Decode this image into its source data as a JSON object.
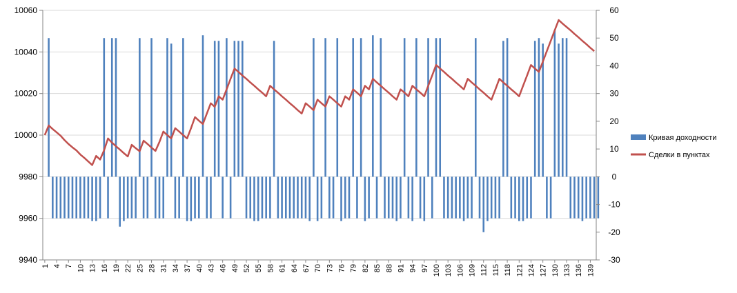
{
  "chart_data": {
    "type": "bar+line",
    "categories_count": 140,
    "x_tick_labels": [
      "1",
      "4",
      "7",
      "10",
      "13",
      "16",
      "19",
      "22",
      "25",
      "28",
      "31",
      "34",
      "37",
      "40",
      "43",
      "46",
      "49",
      "52",
      "55",
      "58",
      "61",
      "64",
      "67",
      "70",
      "73",
      "76",
      "79",
      "82",
      "85",
      "88",
      "91",
      "94",
      "97",
      "100",
      "103",
      "106",
      "109",
      "112",
      "115",
      "118",
      "121",
      "124",
      "127",
      "130",
      "133",
      "136",
      "139"
    ],
    "left_axis": {
      "min": 9940,
      "max": 10060,
      "ticks": [
        "9940",
        "9960",
        "9980",
        "10000",
        "10020",
        "10040",
        "10060"
      ]
    },
    "right_axis": {
      "min": -30,
      "max": 60,
      "ticks": [
        "-30",
        "-20",
        "-10",
        "0",
        "10",
        "20",
        "30",
        "40",
        "50",
        "60"
      ]
    },
    "grid": true,
    "legend_position": "right",
    "series": [
      {
        "name": "Кривая доходности",
        "kind": "bar",
        "axis": "right",
        "color": "#4f81bd",
        "values": [
          0,
          50,
          -15,
          -15,
          -15,
          -15,
          -15,
          -15,
          -15,
          -15,
          -15,
          -15,
          -16,
          -16,
          -15,
          50,
          -15,
          50,
          50,
          -18,
          -16,
          -15,
          -15,
          -15,
          50,
          -15,
          -15,
          50,
          -15,
          -15,
          -15,
          50,
          48,
          -15,
          -15,
          50,
          -16,
          -16,
          -15,
          -15,
          51,
          -15,
          -15,
          49,
          49,
          -15,
          50,
          -15,
          49,
          49,
          49,
          -15,
          -15,
          -16,
          -16,
          -15,
          -15,
          -15,
          49,
          -15,
          -15,
          -15,
          -15,
          -15,
          -15,
          -15,
          -15,
          -16,
          50,
          -16,
          -15,
          50,
          -15,
          -15,
          50,
          -16,
          -15,
          -15,
          50,
          -15,
          50,
          -16,
          -15,
          51,
          -15,
          50,
          -15,
          -15,
          -15,
          -16,
          -15,
          50,
          -15,
          -16,
          50,
          -15,
          -16,
          50,
          -15,
          50,
          50,
          -15,
          -15,
          -15,
          -15,
          -15,
          -16,
          -15,
          -15,
          50,
          -15,
          -20,
          -16,
          -15,
          -15,
          -15,
          49,
          50,
          -15,
          -15,
          -16,
          -16,
          -15,
          -15,
          49,
          50,
          48,
          -15,
          -15,
          53,
          48,
          50,
          50,
          -15,
          -15,
          -15,
          -16,
          -15,
          -15,
          -15,
          -15,
          0
        ],
        "bar_style": "thin"
      },
      {
        "name": "Сделки в пунктах",
        "kind": "line",
        "axis": "right",
        "color": "#c0504d",
        "values": [
          15,
          18.5,
          17.2,
          16,
          14.8,
          13.2,
          11.8,
          10.6,
          9.5,
          8,
          6.8,
          5.5,
          4.2,
          7.5,
          6.2,
          9.5,
          13.8,
          12.3,
          11,
          9.8,
          8.5,
          7.3,
          11.5,
          10.3,
          9.2,
          13,
          11.8,
          10.5,
          9.3,
          12.5,
          16.3,
          15,
          13.8,
          17.5,
          16.3,
          15,
          13.8,
          17.5,
          21.5,
          20.2,
          19,
          22.8,
          26.5,
          25.2,
          29,
          27.8,
          31.5,
          35.3,
          39,
          37.8,
          36.5,
          35.3,
          34,
          32.8,
          31.5,
          30.3,
          29,
          32.8,
          31.5,
          30.3,
          29,
          27.8,
          26.5,
          25.3,
          24,
          22.8,
          26.5,
          25.3,
          24,
          27.8,
          26.5,
          25.3,
          29,
          27.8,
          26.5,
          25.3,
          29,
          27.8,
          31.5,
          30.3,
          29,
          32.8,
          31.5,
          35.3,
          34,
          32.8,
          31.5,
          30.3,
          29,
          27.8,
          31.5,
          30.3,
          29,
          32.8,
          31.5,
          30.3,
          29,
          32.8,
          36.5,
          40.3,
          39,
          37.8,
          36.5,
          35.3,
          34,
          32.8,
          31.5,
          35.3,
          34,
          32.8,
          31.5,
          30.3,
          29,
          27.8,
          31.5,
          35.3,
          34,
          32.8,
          31.5,
          30.3,
          29,
          32.8,
          36.5,
          40.3,
          39,
          37.8,
          41.5,
          45.3,
          49,
          52.8,
          56.5,
          55.2,
          54,
          52.8,
          51.5,
          50.3,
          49,
          47.8,
          46.5,
          45.3
        ]
      }
    ]
  }
}
